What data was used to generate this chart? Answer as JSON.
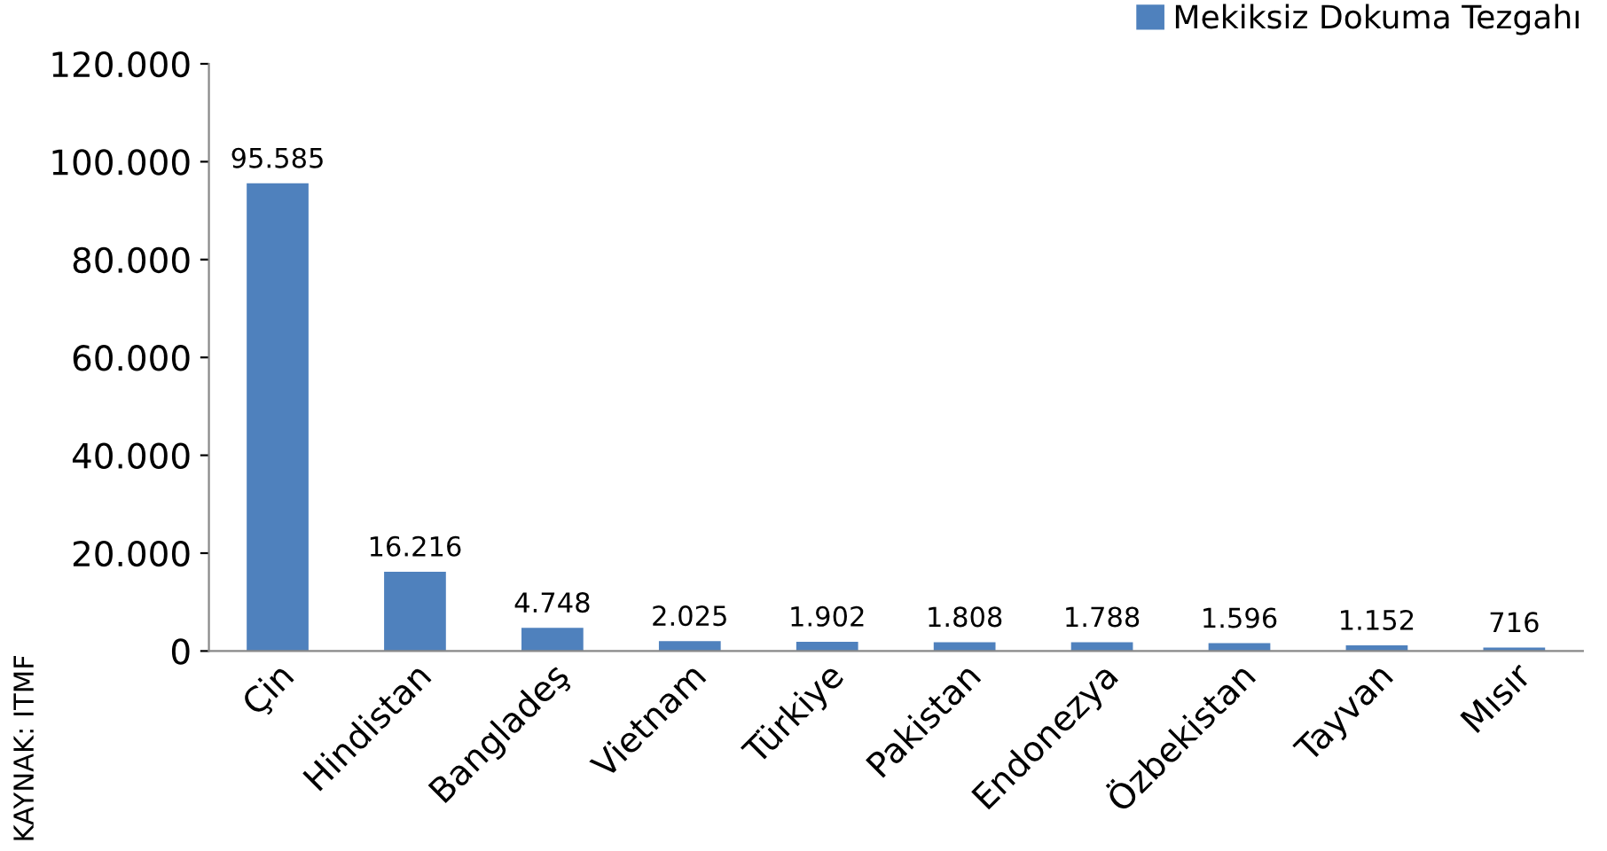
{
  "chart_data": {
    "type": "bar",
    "categories": [
      "Çin",
      "Hindistan",
      "Bangladeş",
      "Vietnam",
      "Türkiye",
      "Pakistan",
      "Endonezya",
      "Özbekistan",
      "Tayvan",
      "Mısır"
    ],
    "series": [
      {
        "name": "Mekiksiz Dokuma Tezgahı",
        "color": "#4f81bd",
        "values": [
          95585,
          16216,
          4748,
          2025,
          1902,
          1808,
          1788,
          1596,
          1152,
          716
        ],
        "value_labels": [
          "95.585",
          "16.216",
          "4.748",
          "2.025",
          "1.902",
          "1.808",
          "1.788",
          "1.596",
          "1.152",
          "716"
        ]
      }
    ],
    "ylim": [
      0,
      120000
    ],
    "yticks": [
      {
        "value": 0,
        "label": "0"
      },
      {
        "value": 20000,
        "label": "20.000"
      },
      {
        "value": 40000,
        "label": "40.000"
      },
      {
        "value": 60000,
        "label": "60.000"
      },
      {
        "value": 80000,
        "label": "80.000"
      },
      {
        "value": 100000,
        "label": "100.000"
      },
      {
        "value": 120000,
        "label": "120.000"
      }
    ],
    "grid": false,
    "legend": "top right",
    "annotations": [
      "KAYNAK: ITMF"
    ]
  }
}
